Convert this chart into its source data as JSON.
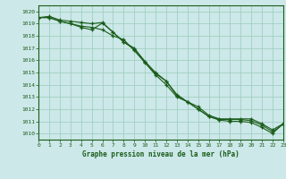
{
  "title": "Graphe pression niveau de la mer (hPa)",
  "xlim": [
    0,
    23
  ],
  "ylim": [
    1009.5,
    1020.5
  ],
  "yticks": [
    1010,
    1011,
    1012,
    1013,
    1014,
    1015,
    1016,
    1017,
    1018,
    1019,
    1020
  ],
  "xticks": [
    0,
    1,
    2,
    3,
    4,
    5,
    6,
    7,
    8,
    9,
    10,
    11,
    12,
    13,
    14,
    15,
    16,
    17,
    18,
    19,
    20,
    21,
    22,
    23
  ],
  "background_color": "#cce8e8",
  "grid_color": "#99ccbb",
  "line_color": "#1a5c1a",
  "line1": [
    1019.5,
    1019.6,
    1019.3,
    1019.2,
    1019.1,
    1019.0,
    1019.1,
    1018.3,
    1017.5,
    1017.0,
    1015.9,
    1014.9,
    1014.3,
    1013.2,
    1012.6,
    1012.2,
    1011.5,
    1011.2,
    1011.2,
    1011.2,
    1011.2,
    1010.8,
    1010.3,
    1010.8
  ],
  "line2": [
    1019.5,
    1019.5,
    1019.2,
    1019.0,
    1018.8,
    1018.7,
    1018.5,
    1018.0,
    1017.7,
    1016.8,
    1015.8,
    1014.8,
    1014.0,
    1013.0,
    1012.6,
    1012.0,
    1011.4,
    1011.15,
    1011.15,
    1011.15,
    1011.05,
    1010.7,
    1010.15,
    1010.75
  ],
  "line3": [
    1019.5,
    1019.5,
    1019.2,
    1019.0,
    1018.7,
    1018.5,
    1019.05,
    1018.3,
    1017.5,
    1016.9,
    1015.9,
    1015.0,
    1014.3,
    1013.1,
    1012.6,
    1012.0,
    1011.4,
    1011.1,
    1011.0,
    1011.0,
    1010.9,
    1010.5,
    1010.0,
    1010.8
  ]
}
